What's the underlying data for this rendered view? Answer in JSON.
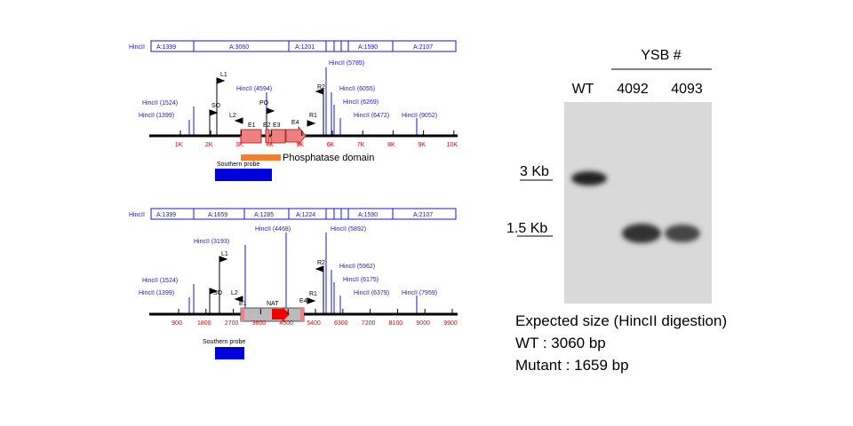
{
  "top_map": {
    "restriction": {
      "label": "HincII",
      "fragments": [
        "A:1399",
        "A:3060",
        "A:1201",
        "A:1590",
        "A:2107"
      ]
    },
    "sites": [
      "HincII (5785)",
      "HincII (4594)",
      "HincII (6055)",
      "HincII (1524)",
      "HincII (6269)",
      "HincII (1399)",
      "HincII (6472)",
      "HincII (9052)"
    ],
    "primers": [
      "L1",
      "R2",
      "SO",
      "PO",
      "L2",
      "R1"
    ],
    "exons": [
      "E1",
      "E2",
      "E3",
      "E4"
    ],
    "axis": [
      "1K",
      "2K",
      "3K",
      "4K",
      "5K",
      "6K",
      "7K",
      "8K",
      "9K",
      "10K"
    ],
    "domain_label": "Phosphatase domain",
    "probe_label": "Southern probe"
  },
  "bottom_map": {
    "restriction": {
      "label": "HincII",
      "fragments": [
        "A:1399",
        "A:1659",
        "A:1285",
        "A:1224",
        "A:1590",
        "A:2107"
      ]
    },
    "sites": [
      "HincII (4468)",
      "HincII (5892)",
      "HincII (3193)",
      "HincII (1524)",
      "HincII (5962)",
      "HincII (1399)",
      "HincII (6175)",
      "HincII (6379)",
      "HincII (7959)"
    ],
    "primers": [
      "L1",
      "R2",
      "L2",
      "SO",
      "R1"
    ],
    "features": [
      "E1",
      "NAT",
      "E4"
    ],
    "axis": [
      "900",
      "1800",
      "2700",
      "3600",
      "4500",
      "5400",
      "6300",
      "7200",
      "8100",
      "9000",
      "9900"
    ],
    "probe_label": "Southern probe"
  },
  "gel": {
    "group_label": "YSB #",
    "lanes": [
      "WT",
      "4092",
      "4093"
    ],
    "markers": [
      "3 Kb",
      "1.5 Kb"
    ]
  },
  "notes": [
    "Expected size (HincII digestion)",
    "WT : 3060 bp",
    "Mutant : 1659 bp"
  ]
}
